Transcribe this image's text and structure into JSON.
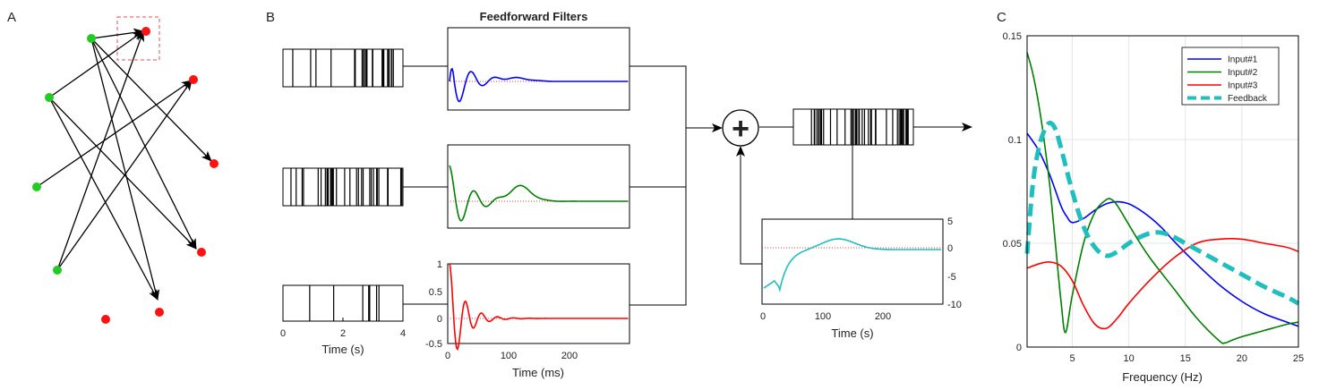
{
  "colors": {
    "input1": "#0000ff",
    "input2": "#008000",
    "input3": "#ff0000",
    "feedback": "#1fbfbf",
    "source_node": "#22cc22",
    "target_node": "#ff1111",
    "grid": "#e6e6e6"
  },
  "panels": {
    "a": {
      "label": "A"
    },
    "b": {
      "label": "B",
      "title": "Feedforward Filters",
      "spike_axis": {
        "xlabel": "Time (s)",
        "ticks": [
          "0",
          "2",
          "4"
        ]
      },
      "filter_axis": {
        "xlabel": "Time (ms)",
        "xticks": [
          "0",
          "100",
          "200"
        ],
        "yticks": [
          "1",
          "0.5",
          "0",
          "-0.5"
        ]
      },
      "feedback_axis": {
        "xlabel": "Time (s)",
        "xticks": [
          "0",
          "100",
          "200"
        ],
        "yticks": [
          "5",
          "0",
          "-5",
          "-10"
        ]
      },
      "sum_symbol": "+"
    },
    "c": {
      "label": "C"
    }
  },
  "chart_data": {
    "type": "line",
    "xlabel": "Frequency (Hz)",
    "ylabel": "",
    "xlim": [
      1,
      25
    ],
    "ylim": [
      0,
      0.15
    ],
    "xticks": [
      "5",
      "10",
      "15",
      "20",
      "25"
    ],
    "yticks": [
      "0",
      "0.05",
      "0.1",
      "0.15"
    ],
    "grid": true,
    "legend_position": "top-right",
    "series": [
      {
        "name": "Input#1",
        "style": "solid",
        "x": [
          1,
          2,
          3,
          4,
          4.5,
          5,
          6,
          7,
          8,
          9,
          10,
          11,
          12,
          13,
          14,
          16,
          18,
          20,
          22,
          24,
          25
        ],
        "y": [
          0.103,
          0.095,
          0.083,
          0.068,
          0.063,
          0.06,
          0.062,
          0.066,
          0.069,
          0.07,
          0.069,
          0.066,
          0.062,
          0.057,
          0.051,
          0.04,
          0.03,
          0.022,
          0.016,
          0.012,
          0.01
        ]
      },
      {
        "name": "Input#2",
        "style": "solid",
        "x": [
          1,
          1.5,
          2,
          2.5,
          3,
          3.5,
          4,
          4.4,
          5,
          6,
          7,
          8,
          8.5,
          9,
          10,
          11,
          12,
          14,
          16,
          18,
          18.5,
          19,
          20,
          22,
          24,
          25
        ],
        "y": [
          0.142,
          0.132,
          0.118,
          0.1,
          0.078,
          0.05,
          0.022,
          0.007,
          0.025,
          0.05,
          0.065,
          0.071,
          0.071,
          0.068,
          0.059,
          0.05,
          0.042,
          0.028,
          0.014,
          0.003,
          0.002,
          0.003,
          0.005,
          0.008,
          0.011,
          0.012
        ]
      },
      {
        "name": "Input#3",
        "style": "solid",
        "x": [
          1,
          2,
          3,
          4,
          5,
          6,
          7,
          8,
          9,
          10,
          12,
          14,
          16,
          18,
          20,
          22,
          24,
          25
        ],
        "y": [
          0.038,
          0.04,
          0.041,
          0.039,
          0.032,
          0.02,
          0.011,
          0.009,
          0.014,
          0.021,
          0.033,
          0.043,
          0.05,
          0.052,
          0.052,
          0.05,
          0.048,
          0.046
        ]
      },
      {
        "name": "Feedback",
        "style": "dashed",
        "x": [
          1,
          1.5,
          2,
          2.5,
          3,
          3.5,
          4,
          5,
          6,
          7,
          8,
          9,
          10,
          11,
          12,
          13,
          14,
          15,
          16,
          18,
          20,
          22,
          24,
          25
        ],
        "y": [
          0.045,
          0.078,
          0.095,
          0.104,
          0.108,
          0.105,
          0.096,
          0.075,
          0.058,
          0.048,
          0.044,
          0.046,
          0.05,
          0.053,
          0.055,
          0.055,
          0.053,
          0.05,
          0.047,
          0.041,
          0.035,
          0.029,
          0.024,
          0.021
        ]
      }
    ]
  }
}
